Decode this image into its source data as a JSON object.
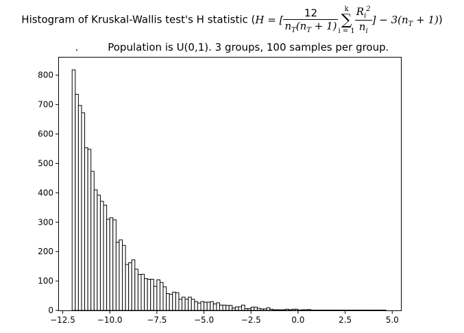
{
  "title": {
    "prefix": "Histogram of Kruskal-Wallis test's H statistic (",
    "formula": "H = [ 12 / (n_T(n_T+1)) Σ_{i=1}^{k} R_i² / n_i ] − 3(n_T + 1))",
    "subtitle": ".         Population is U(0,1). 3 groups, 100 samples per group."
  },
  "chart_data": {
    "type": "bar",
    "title": "Histogram of Kruskal-Wallis test's H statistic (H = [12/(n_T(n_T+1)) Σ R_i²/n_i] − 3(n_T+1))",
    "subtitle": ".         Population is U(0,1). 3 groups, 100 samples per group.",
    "xlabel": "",
    "ylabel": "",
    "xlim": [
      -12.7,
      5.5
    ],
    "ylim": [
      0,
      860
    ],
    "xticks": [
      -12.5,
      -10.0,
      -7.5,
      -5.0,
      -2.5,
      0.0,
      2.5,
      5.0
    ],
    "xtick_labels": [
      "−12.5",
      "−10.0",
      "−7.5",
      "−5.0",
      "−2.5",
      "0.0",
      "2.5",
      "5.0"
    ],
    "yticks": [
      0,
      100,
      200,
      300,
      400,
      500,
      600,
      700,
      800
    ],
    "ytick_labels": [
      "0",
      "100",
      "200",
      "300",
      "400",
      "500",
      "600",
      "700",
      "800"
    ],
    "bin_start": -12.0,
    "bin_width": 0.1667,
    "values": [
      818,
      735,
      697,
      672,
      553,
      548,
      473,
      410,
      392,
      371,
      358,
      310,
      315,
      308,
      232,
      240,
      221,
      156,
      162,
      172,
      140,
      122,
      123,
      108,
      106,
      106,
      82,
      104,
      95,
      80,
      57,
      55,
      62,
      60,
      38,
      45,
      38,
      45,
      38,
      30,
      25,
      30,
      28,
      28,
      30,
      22,
      26,
      18,
      18,
      17,
      17,
      8,
      12,
      12,
      18,
      6,
      6,
      11,
      11,
      7,
      5,
      5,
      9,
      4,
      2,
      2,
      2,
      2,
      4,
      2,
      4,
      4,
      1,
      2,
      2,
      3,
      1,
      1,
      1,
      1,
      1,
      1,
      1,
      1,
      1,
      1,
      1,
      1,
      1,
      1,
      1,
      1,
      1,
      1,
      1,
      1,
      1,
      1,
      1,
      1
    ],
    "bar_fill": "#ffffff",
    "bar_edge": "#000000",
    "grid": false,
    "legend": "none"
  }
}
